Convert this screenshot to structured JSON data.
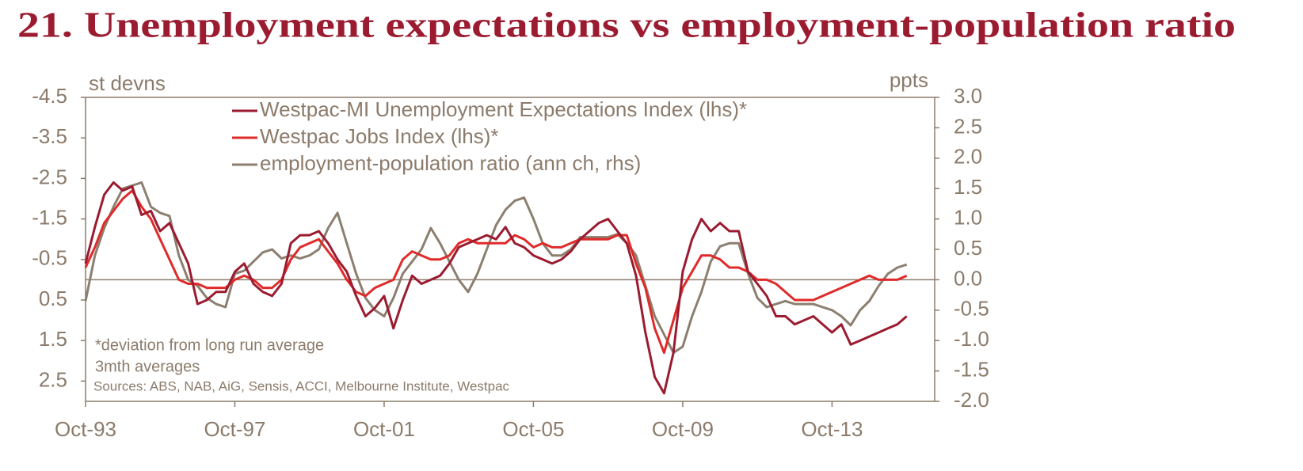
{
  "chart_data": {
    "type": "line",
    "title": "21. Unemployment expectations vs employment-population ratio",
    "y_label": "st devns",
    "y2_label": "ppts",
    "notes": [
      "*deviation from long run average",
      "3mth averages"
    ],
    "source": "Sources: ABS, NAB, AiG, Sensis, ACCI, Melbourne Institute, Westpac",
    "categories": [
      "Oct-93",
      null,
      null,
      null,
      null,
      null,
      null,
      null,
      null,
      null,
      null,
      null,
      null,
      null,
      null,
      null,
      "Oct-97",
      null,
      null,
      null,
      null,
      null,
      null,
      null,
      null,
      null,
      null,
      null,
      null,
      null,
      null,
      null,
      "Oct-01",
      null,
      null,
      null,
      null,
      null,
      null,
      null,
      null,
      null,
      null,
      null,
      null,
      null,
      null,
      null,
      "Oct-05",
      null,
      null,
      null,
      null,
      null,
      null,
      null,
      null,
      null,
      null,
      null,
      null,
      null,
      null,
      null,
      "Oct-09",
      null,
      null,
      null,
      null,
      null,
      null,
      null,
      null,
      null,
      null,
      null,
      null,
      null,
      null,
      null,
      "Oct-13",
      null,
      null,
      null,
      null,
      null,
      null,
      null,
      null
    ],
    "ylim": [
      3.0,
      -4.5
    ],
    "yticks": [
      -4.5,
      -3.5,
      -2.5,
      -1.5,
      -0.5,
      0.5,
      1.5,
      2.5
    ],
    "y2lim": [
      -2.0,
      3.0
    ],
    "y2ticks": [
      {
        "value": 3.0,
        "label": "3.0"
      },
      2.5,
      {
        "value": 2.0,
        "label": "2.0"
      },
      1.5,
      {
        "value": 1.0,
        "label": "1.0"
      },
      0.5,
      {
        "value": 0.0,
        "label": "0.0"
      },
      -0.5,
      {
        "value": -1.0,
        "label": "-1.0"
      },
      -1.5,
      {
        "value": -2.0,
        "label": "-2.0"
      }
    ],
    "grid": false,
    "series": [
      {
        "name": "Westpac-MI Unemployment Expectations Index (lhs)*",
        "color": "#9b1b30",
        "axis": "y",
        "values": [
          -0.4,
          -1.3,
          -2.1,
          -2.4,
          -2.2,
          -2.3,
          -1.6,
          -1.7,
          -1.2,
          -1.4,
          -0.9,
          -0.4,
          0.6,
          0.5,
          0.3,
          0.3,
          -0.2,
          -0.4,
          0.1,
          0.3,
          0.4,
          0.1,
          -0.9,
          -1.1,
          -1.1,
          -1.2,
          -0.9,
          -0.5,
          -0.2,
          0.4,
          0.9,
          0.7,
          0.4,
          1.2,
          0.5,
          -0.1,
          0.1,
          0.0,
          -0.1,
          -0.4,
          -0.8,
          -0.9,
          -1.0,
          -1.1,
          -1.0,
          -1.3,
          -0.9,
          -0.8,
          -0.6,
          -0.5,
          -0.4,
          -0.5,
          -0.7,
          -1.0,
          -1.2,
          -1.4,
          -1.5,
          -1.2,
          -0.9,
          -0.1,
          1.3,
          2.4,
          2.8,
          1.8,
          -0.2,
          -1.0,
          -1.5,
          -1.2,
          -1.4,
          -1.2,
          -1.2,
          -0.2,
          0.1,
          0.4,
          0.9,
          0.9,
          1.1,
          1.0,
          0.9,
          1.1,
          1.3,
          1.1,
          1.6,
          1.5,
          1.4,
          1.3,
          1.2,
          1.1,
          0.9
        ]
      },
      {
        "name": "Westpac Jobs Index (lhs)*",
        "color": "#e02a2a",
        "axis": "y",
        "values": [
          -0.3,
          -0.8,
          -1.4,
          -1.7,
          -2.0,
          -2.2,
          -1.8,
          -1.5,
          -1.0,
          -0.5,
          0.0,
          0.1,
          0.1,
          0.2,
          0.2,
          0.2,
          0.0,
          -0.1,
          0.0,
          0.2,
          0.2,
          0.0,
          -0.5,
          -0.8,
          -0.9,
          -1.0,
          -0.7,
          -0.4,
          0.0,
          0.3,
          0.4,
          0.2,
          0.1,
          0.0,
          -0.5,
          -0.7,
          -0.6,
          -0.5,
          -0.5,
          -0.6,
          -0.9,
          -1.0,
          -0.9,
          -0.9,
          -0.9,
          -0.9,
          -1.1,
          -1.0,
          -0.8,
          -0.9,
          -0.8,
          -0.8,
          -0.9,
          -1.0,
          -1.0,
          -1.0,
          -1.0,
          -1.1,
          -1.1,
          -0.4,
          0.2,
          1.2,
          1.8,
          1.0,
          0.2,
          -0.2,
          -0.6,
          -0.6,
          -0.5,
          -0.3,
          -0.3,
          -0.2,
          0.0,
          0.0,
          0.1,
          0.3,
          0.5,
          0.5,
          0.5,
          0.4,
          0.3,
          0.2,
          0.1,
          0.0,
          -0.1,
          0.0,
          0.0,
          0.0,
          -0.1
        ]
      },
      {
        "name": "employment-population ratio (ann ch, rhs)",
        "color": "#8c7f70",
        "axis": "y2",
        "values": [
          -0.35,
          0.4,
          0.85,
          1.2,
          1.5,
          1.55,
          1.6,
          1.2,
          1.1,
          1.05,
          0.4,
          0.0,
          -0.1,
          -0.3,
          -0.4,
          -0.45,
          0.1,
          0.15,
          0.3,
          0.45,
          0.5,
          0.35,
          0.4,
          0.35,
          0.4,
          0.5,
          0.85,
          1.1,
          0.6,
          0.1,
          -0.3,
          -0.5,
          -0.6,
          -0.3,
          0.1,
          0.3,
          0.5,
          0.85,
          0.6,
          0.3,
          0.0,
          -0.2,
          0.1,
          0.5,
          0.9,
          1.15,
          1.3,
          1.35,
          1.0,
          0.6,
          0.4,
          0.4,
          0.5,
          0.7,
          0.7,
          0.7,
          0.7,
          0.75,
          0.6,
          0.4,
          -0.1,
          -0.6,
          -0.9,
          -1.2,
          -1.1,
          -0.6,
          -0.2,
          0.3,
          0.55,
          0.6,
          0.6,
          0.1,
          -0.3,
          -0.45,
          -0.4,
          -0.35,
          -0.4,
          -0.4,
          -0.4,
          -0.45,
          -0.5,
          -0.6,
          -0.75,
          -0.5,
          -0.35,
          -0.1,
          0.1,
          0.2,
          0.25
        ]
      }
    ]
  }
}
